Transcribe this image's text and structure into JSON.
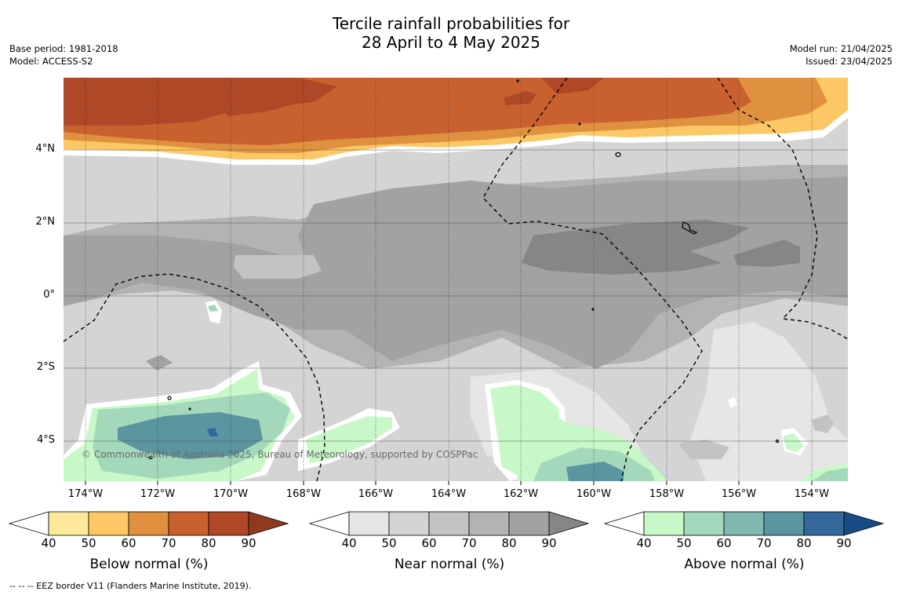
{
  "title": {
    "line1": "Tercile rainfall probabilities for",
    "line2": "28 April to 4 May 2025"
  },
  "meta_left": {
    "base_period": "Base period: 1981-2018",
    "model": "Model: ACCESS-S2"
  },
  "meta_right": {
    "model_run": "Model run: 21/04/2025",
    "issued": "Issued: 23/04/2025"
  },
  "map": {
    "copyright": "© Commonwealth of Australia 2025, Bureau of Meteorology, supported by COSPPac",
    "latitude_labels": [
      "4°N",
      "2°N",
      "0°",
      "2°S",
      "4°S"
    ],
    "longitude_labels": [
      "174°W",
      "172°W",
      "170°W",
      "168°W",
      "166°W",
      "164°W",
      "162°W",
      "160°W",
      "158°W",
      "156°W",
      "154°W"
    ]
  },
  "colorbars": [
    {
      "name": "below",
      "title": "Below normal (%)",
      "ticks": [
        "40",
        "50",
        "60",
        "70",
        "80",
        "90"
      ],
      "colors": [
        "#fde99b",
        "#fcc865",
        "#e0913f",
        "#c9612f",
        "#ae4826"
      ],
      "extend_color": "#8e3a1e"
    },
    {
      "name": "near",
      "title": "Near normal (%)",
      "ticks": [
        "40",
        "50",
        "60",
        "70",
        "80",
        "90"
      ],
      "colors": [
        "#e6e6e6",
        "#d4d4d4",
        "#c3c3c3",
        "#b3b3b3",
        "#a2a2a2"
      ],
      "extend_color": "#868686"
    },
    {
      "name": "above",
      "title": "Above normal (%)",
      "ticks": [
        "40",
        "50",
        "60",
        "70",
        "80",
        "90"
      ],
      "colors": [
        "#c8f8c8",
        "#a3d8bb",
        "#80b8b0",
        "#5b95a0",
        "#34679a"
      ],
      "extend_color": "#174c85"
    }
  ],
  "footer": "--  --  -- EEZ border V11 (Flanders Marine Institute, 2019)."
}
